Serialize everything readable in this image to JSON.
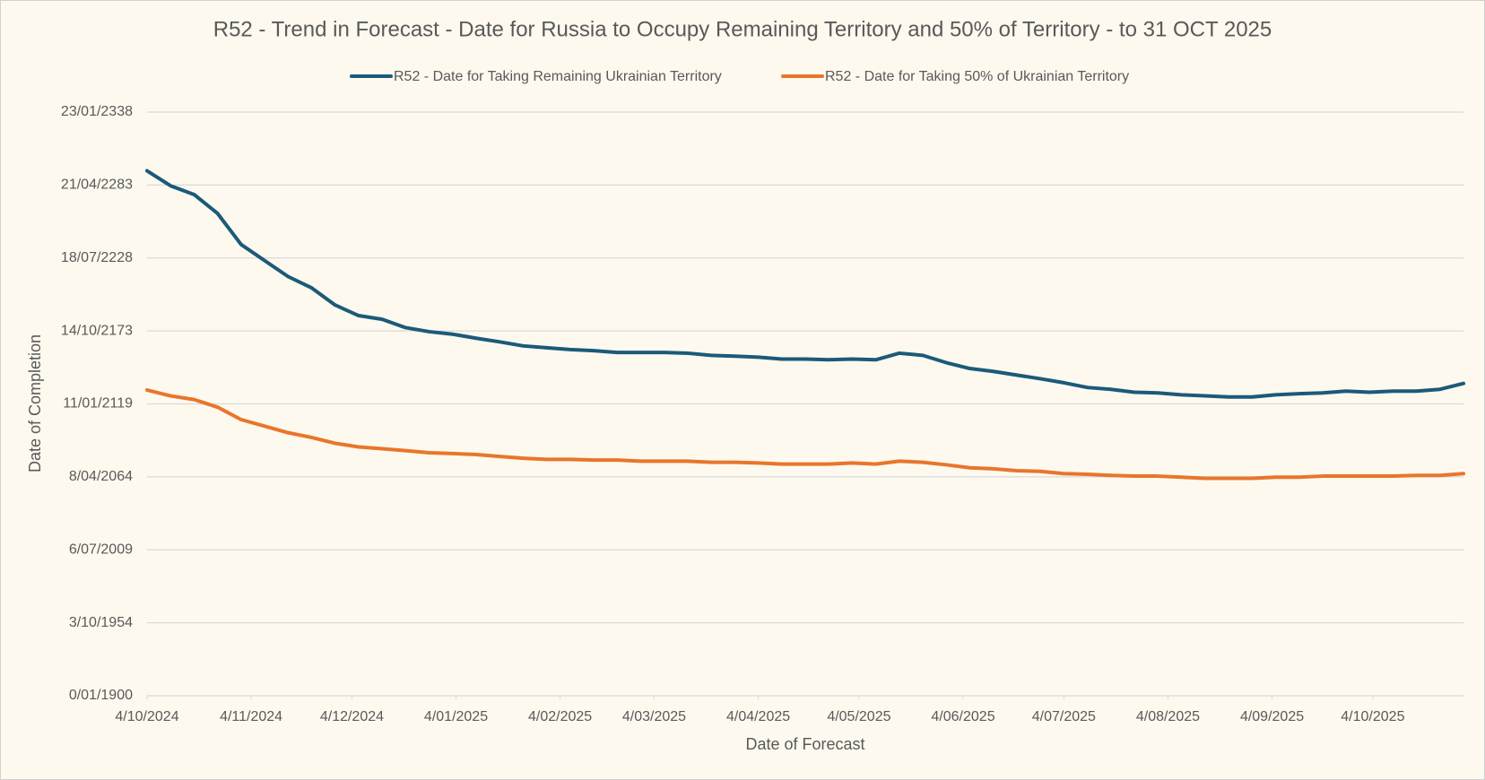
{
  "chart_data": {
    "type": "line",
    "title": "R52 - Trend in Forecast - Date for Russia to Occupy Remaining Territory and 50% of Territory - to 31 OCT 2025",
    "x_label": "Date of Forecast",
    "y_label": "Date of Completion",
    "x": [
      "2024-10-04",
      "2024-10-11",
      "2024-10-18",
      "2024-10-25",
      "2024-11-01",
      "2024-11-08",
      "2024-11-15",
      "2024-11-22",
      "2024-11-29",
      "2024-12-06",
      "2024-12-13",
      "2024-12-20",
      "2024-12-27",
      "2025-01-03",
      "2025-01-10",
      "2025-01-17",
      "2025-01-24",
      "2025-01-31",
      "2025-02-07",
      "2025-02-14",
      "2025-02-21",
      "2025-02-28",
      "2025-03-07",
      "2025-03-14",
      "2025-03-21",
      "2025-03-28",
      "2025-04-04",
      "2025-04-11",
      "2025-04-18",
      "2025-04-25",
      "2025-05-02",
      "2025-05-09",
      "2025-05-16",
      "2025-05-23",
      "2025-05-30",
      "2025-06-06",
      "2025-06-13",
      "2025-06-20",
      "2025-06-27",
      "2025-07-04",
      "2025-07-11",
      "2025-07-18",
      "2025-07-25",
      "2025-08-01",
      "2025-08-08",
      "2025-08-15",
      "2025-08-22",
      "2025-08-29",
      "2025-09-05",
      "2025-09-12",
      "2025-09-19",
      "2025-09-26",
      "2025-10-03",
      "2025-10-10",
      "2025-10-17",
      "2025-10-24",
      "2025-10-31"
    ],
    "series": [
      {
        "name": "R52 - Date for Taking Remaining Ukrainian Territory",
        "color": "#1b5a7a",
        "values": [
          143900,
          139800,
          137400,
          132200,
          123700,
          119300,
          114900,
          111800,
          107100,
          104200,
          103200,
          100900,
          99800,
          99100,
          98000,
          97000,
          95900,
          95400,
          94900,
          94600,
          94100,
          94100,
          94100,
          93900,
          93300,
          93100,
          92800,
          92300,
          92300,
          92100,
          92300,
          92100,
          93900,
          93300,
          91300,
          89700,
          88900,
          87900,
          86900,
          85800,
          84500,
          84000,
          83200,
          83000,
          82500,
          82200,
          81900,
          81900,
          82500,
          82800,
          83000,
          83500,
          83200,
          83500,
          83500,
          84000,
          85600
        ]
      },
      {
        "name": "R52 - Date for Taking  50% of Ukrainian Territory",
        "color": "#e8762c",
        "values": [
          83800,
          82200,
          81200,
          79100,
          75700,
          73900,
          72100,
          70800,
          69200,
          68200,
          67700,
          67200,
          66600,
          66400,
          66100,
          65600,
          65100,
          64800,
          64800,
          64600,
          64600,
          64300,
          64300,
          64300,
          64000,
          64000,
          63800,
          63500,
          63500,
          63500,
          63800,
          63500,
          64300,
          64000,
          63300,
          62500,
          62200,
          61700,
          61500,
          60900,
          60700,
          60400,
          60200,
          60200,
          59900,
          59600,
          59600,
          59600,
          59900,
          59900,
          60200,
          60200,
          60200,
          60200,
          60400,
          60400,
          60900
        ]
      }
    ],
    "xlim": [
      "2024-10-04",
      "2025-10-31"
    ],
    "xticks": [
      {
        "value": "2024-10-04",
        "label": "4/10/2024"
      },
      {
        "value": "2024-11-04",
        "label": "4/11/2024"
      },
      {
        "value": "2024-12-04",
        "label": "4/12/2024"
      },
      {
        "value": "2025-01-04",
        "label": "4/01/2025"
      },
      {
        "value": "2025-02-04",
        "label": "4/02/2025"
      },
      {
        "value": "2025-03-04",
        "label": "4/03/2025"
      },
      {
        "value": "2025-04-04",
        "label": "4/04/2025"
      },
      {
        "value": "2025-05-04",
        "label": "4/05/2025"
      },
      {
        "value": "2025-06-04",
        "label": "4/06/2025"
      },
      {
        "value": "2025-07-04",
        "label": "4/07/2025"
      },
      {
        "value": "2025-08-04",
        "label": "4/08/2025"
      },
      {
        "value": "2025-09-04",
        "label": "4/09/2025"
      },
      {
        "value": "2025-10-04",
        "label": "4/10/2025"
      }
    ],
    "ylim": [
      0,
      160000
    ],
    "yticks": [
      {
        "value": 0,
        "label": "0/01/1900"
      },
      {
        "value": 20000,
        "label": "3/10/1954"
      },
      {
        "value": 40000,
        "label": "6/07/2009"
      },
      {
        "value": 60000,
        "label": "8/04/2064"
      },
      {
        "value": 80000,
        "label": "11/01/2119"
      },
      {
        "value": 100000,
        "label": "14/10/2173"
      },
      {
        "value": 120000,
        "label": "18/07/2228"
      },
      {
        "value": 140000,
        "label": "21/04/2283"
      },
      {
        "value": 160000,
        "label": "23/01/2338"
      }
    ],
    "grid": true
  }
}
